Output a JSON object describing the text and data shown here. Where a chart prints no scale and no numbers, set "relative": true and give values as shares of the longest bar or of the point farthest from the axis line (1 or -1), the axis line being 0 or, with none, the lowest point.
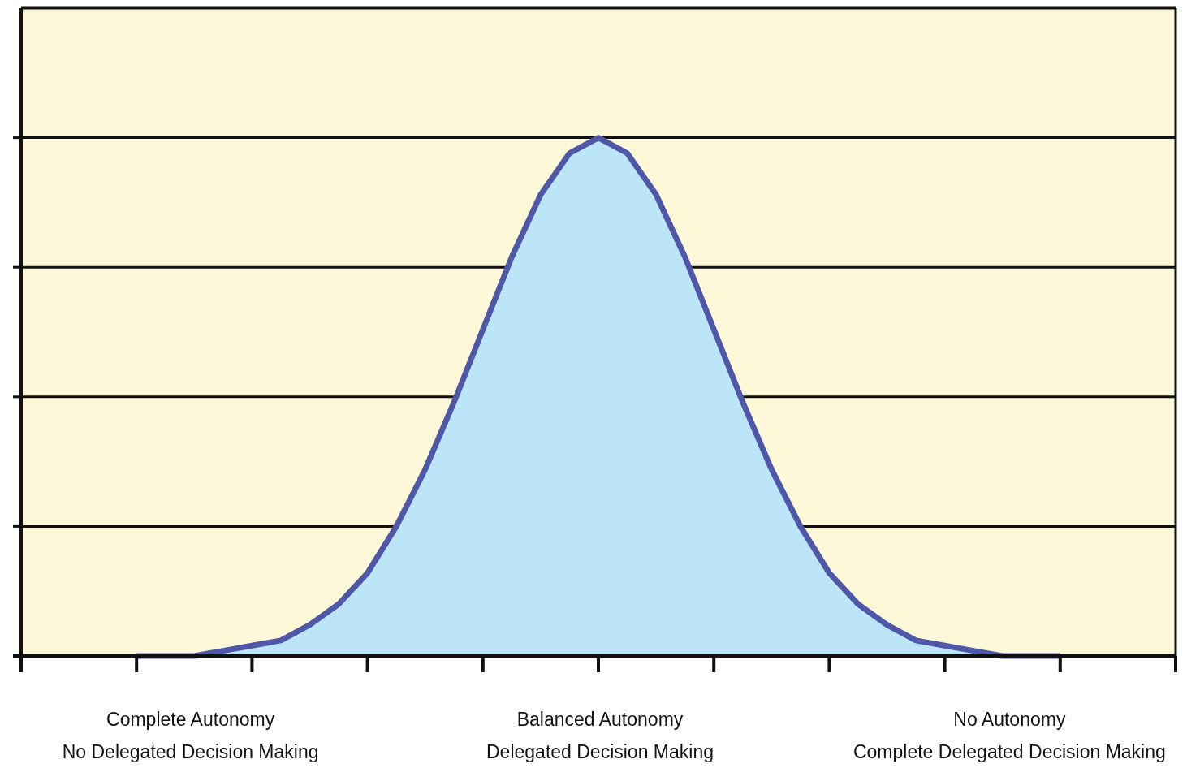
{
  "chart_data": {
    "type": "area",
    "relative": true,
    "grid": "y",
    "categories": [
      null,
      null,
      null,
      null,
      null,
      null,
      null,
      null,
      null,
      null,
      null,
      null,
      null,
      null,
      null,
      null,
      null,
      null,
      null,
      null,
      null,
      null,
      null,
      null,
      null,
      null,
      null,
      null,
      null,
      null,
      null,
      null,
      null
    ],
    "series": [
      {
        "color": "#4f58a8",
        "values": [
          0,
          0,
          0,
          0.01,
          0.02,
          0.03,
          0.06,
          0.1,
          0.16,
          0.25,
          0.36,
          0.49,
          0.63,
          0.77,
          0.89,
          0.97,
          1,
          0.97,
          0.89,
          0.77,
          0.63,
          0.49,
          0.36,
          0.25,
          0.16,
          0.1,
          0.06,
          0.03,
          0.02,
          0.01,
          0,
          0,
          0
        ]
      }
    ],
    "annotations": [
      "Complete Autonomy\nNo Delegated Decision Making",
      "Balanced Autonomy\nDelegated Decision Making",
      "No Autonomy\nComplete Delegated Decision Making"
    ]
  }
}
